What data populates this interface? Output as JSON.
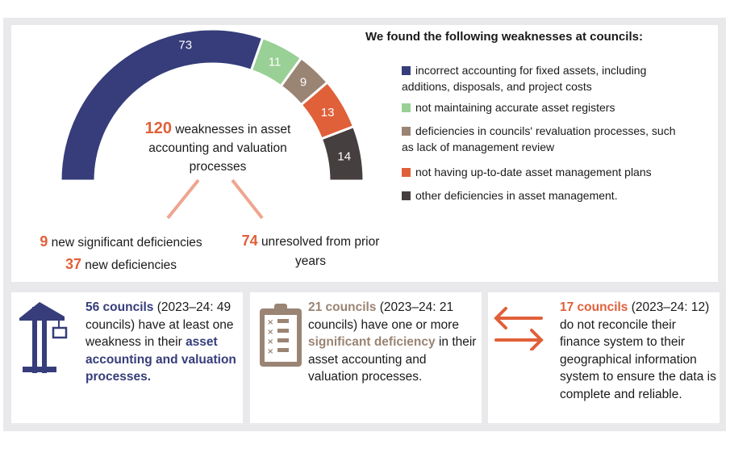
{
  "colors": {
    "navy": "#363d7a",
    "green": "#99d095",
    "taupe": "#9a8474",
    "orange": "#e0603a",
    "dark": "#463f3f",
    "accent": "#e0603a",
    "salmon": "#eea58f"
  },
  "chart_data": {
    "type": "pie",
    "variant": "semicircle-donut",
    "total": 120,
    "values": [
      73,
      11,
      9,
      13,
      14
    ],
    "labels": [
      "73",
      "11",
      "9",
      "13",
      "14"
    ],
    "categories": [
      "incorrect accounting for fixed assets, including additions, disposals, and project costs",
      "not maintaining accurate asset registers",
      "deficiencies in councils' revaluation processes, such as lack of management review",
      "not having up-to-date asset management plans",
      "other deficiencies in asset management."
    ],
    "colors": [
      "#363d7a",
      "#99d095",
      "#9a8474",
      "#e0603a",
      "#463f3f"
    ],
    "legend_placement": "right"
  },
  "center": {
    "number": "120",
    "text": "weaknesses in asset accounting and valuation processes"
  },
  "breakdown": {
    "sig_number": "9",
    "sig_text": "new significant deficiencies",
    "new_number": "37",
    "new_text": "new deficiencies",
    "unres_number": "74",
    "unres_text": "unresolved from prior years"
  },
  "legend": {
    "title": "We found the following weaknesses at councils:"
  },
  "cards": [
    {
      "icon": "crane-icon",
      "highlight": "56 councils",
      "text1": " (2023–24: 49 councils) have at least one weakness in their ",
      "highlight2": "asset accounting and valuation processes.",
      "text2": ""
    },
    {
      "icon": "clipboard-checklist-icon",
      "highlight": "21 councils",
      "text1": " (2023–24: 21 councils) have one or more ",
      "highlight2": "significant deficiency",
      "text2": " in their asset accounting and valuation processes."
    },
    {
      "icon": "two-way-arrows-icon",
      "highlight": "17 councils",
      "text1": " (2023–24: 12) do not reconcile their finance system to their geographical information system to ensure the data is complete and reliable.",
      "highlight2": "",
      "text2": ""
    }
  ]
}
